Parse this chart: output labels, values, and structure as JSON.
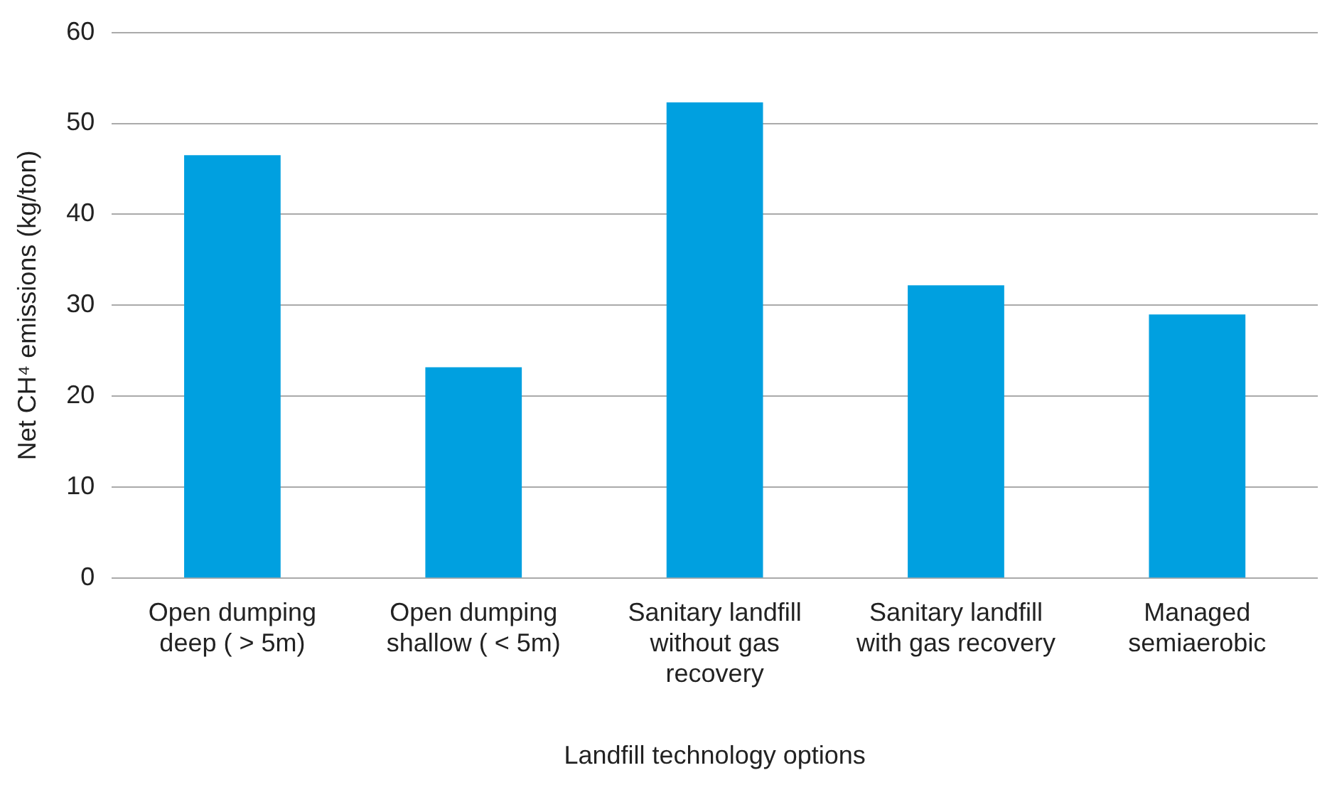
{
  "chart_data": {
    "type": "bar",
    "xlabel": "Landfill technology options",
    "ylabel": "Net CH⁴ emissions (kg/ton)",
    "categories": [
      "Open dumping deep ( > 5m)",
      "Open dumping shallow ( < 5m)",
      "Sanitary landfill without gas recovery",
      "Sanitary landfill with gas recovery",
      "Managed semiaerobic"
    ],
    "values": [
      46.5,
      23.2,
      52.3,
      32.2,
      29.0
    ],
    "color": "#00a0e0",
    "ylim": [
      0,
      60
    ],
    "yticks": [
      0,
      10,
      20,
      30,
      40,
      50,
      60
    ],
    "grid": "y",
    "legend": false
  }
}
